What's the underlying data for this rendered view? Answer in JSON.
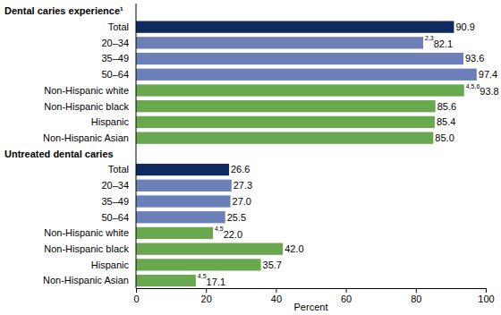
{
  "chart_data": {
    "type": "bar",
    "orientation": "horizontal",
    "data_labels": true,
    "xlabel": "Percent",
    "xlim": [
      0,
      100
    ],
    "xticks": [
      0,
      20,
      40,
      60,
      80,
      100
    ],
    "groups": [
      {
        "title": "Dental caries experience¹",
        "categories": [
          "Total",
          "20–34",
          "35–49",
          "50–64",
          "Non-Hispanic white",
          "Non-Hispanic black",
          "Hispanic",
          "Non-Hispanic Asian"
        ],
        "values": [
          90.9,
          82.1,
          93.6,
          97.4,
          93.8,
          85.6,
          85.4,
          85.0
        ],
        "value_labels": [
          "90.9",
          "82.1",
          "93.6",
          "97.4",
          "93.8",
          "85.6",
          "85.4",
          "85.0"
        ],
        "notes": [
          null,
          "2,3",
          null,
          null,
          "4,5,6",
          null,
          null,
          null
        ],
        "colors": [
          "#0f2a5f",
          "#6c7fb8",
          "#6c7fb8",
          "#6c7fb8",
          "#6aa84f",
          "#6aa84f",
          "#6aa84f",
          "#6aa84f"
        ]
      },
      {
        "title": "Untreated dental caries",
        "categories": [
          "Total",
          "20–34",
          "35–49",
          "50–64",
          "Non-Hispanic white",
          "Non-Hispanic black",
          "Hispanic",
          "Non-Hispanic Asian"
        ],
        "values": [
          26.6,
          27.3,
          27.0,
          25.5,
          22.0,
          42.0,
          35.7,
          17.1
        ],
        "value_labels": [
          "26.6",
          "27.3",
          "27.0",
          "25.5",
          "22.0",
          "42.0",
          "35.7",
          "17.1"
        ],
        "notes": [
          null,
          null,
          null,
          null,
          "4,5",
          null,
          null,
          "4,5"
        ],
        "colors": [
          "#0f2a5f",
          "#6c7fb8",
          "#6c7fb8",
          "#6c7fb8",
          "#6aa84f",
          "#6aa84f",
          "#6aa84f",
          "#6aa84f"
        ]
      }
    ]
  }
}
